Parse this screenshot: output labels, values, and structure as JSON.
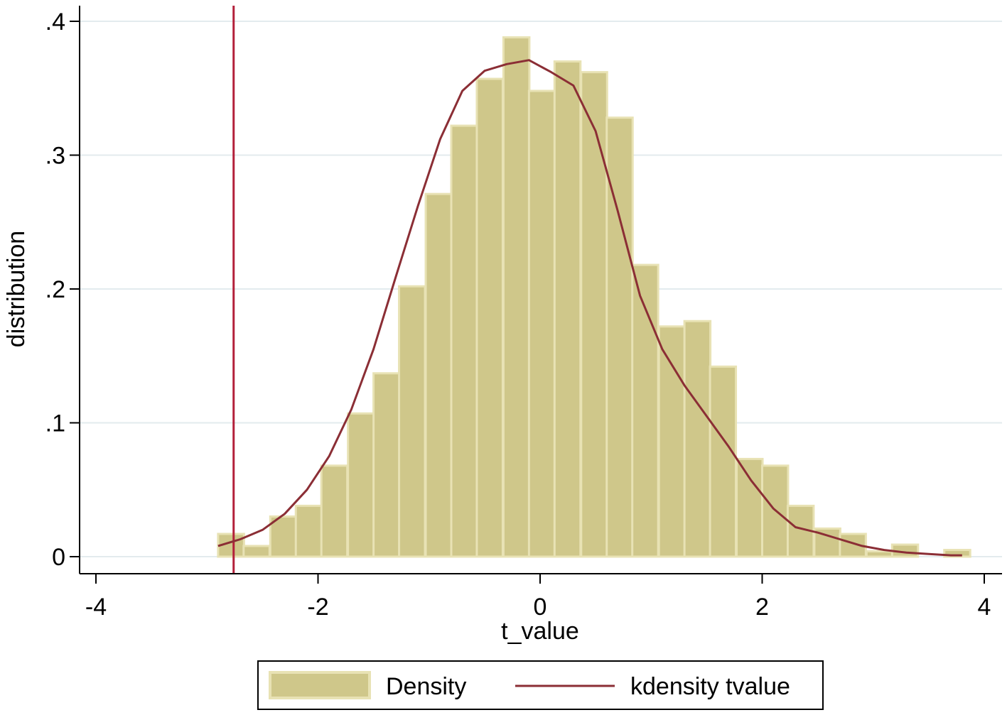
{
  "chart_data": {
    "type": "bar",
    "subtype": "histogram-with-density",
    "xlabel": "t_value",
    "ylabel": "distribution",
    "xlim": [
      -4,
      4
    ],
    "ylim": [
      0,
      0.4
    ],
    "xticks": [
      -4,
      -2,
      0,
      2,
      4
    ],
    "xtick_labels": [
      "-4",
      "-2",
      "0",
      "2",
      "4"
    ],
    "yticks": [
      0,
      0.1,
      0.2,
      0.3,
      0.4
    ],
    "ytick_labels": [
      "0",
      ".1",
      ".2",
      ".3",
      ".4"
    ],
    "grid": "horizontal",
    "legend_position": "bottom",
    "reference_line_x": -2.76,
    "bin_width": 0.2334,
    "bins": {
      "x_start": [
        -2.9,
        -2.67,
        -2.43,
        -2.2,
        -1.97,
        -1.73,
        -1.5,
        -1.27,
        -1.03,
        -0.8,
        -0.57,
        -0.33,
        -0.1,
        0.13,
        0.37,
        0.6,
        0.83,
        1.07,
        1.3,
        1.53,
        1.77,
        2.0,
        2.23,
        2.47,
        2.7,
        2.94,
        3.17,
        3.4,
        3.64
      ],
      "density": [
        0.017,
        0.008,
        0.03,
        0.038,
        0.068,
        0.107,
        0.137,
        0.202,
        0.271,
        0.322,
        0.357,
        0.388,
        0.348,
        0.37,
        0.362,
        0.328,
        0.218,
        0.172,
        0.176,
        0.142,
        0.073,
        0.068,
        0.038,
        0.021,
        0.017,
        0.004,
        0.009,
        0.0,
        0.005
      ]
    },
    "series": [
      {
        "name": "Density",
        "kind": "bar",
        "color": "#CFC78A"
      },
      {
        "name": "kdensity tvalue",
        "kind": "line",
        "color": "#8B2E35",
        "x": [
          -2.9,
          -2.7,
          -2.5,
          -2.3,
          -2.1,
          -1.9,
          -1.7,
          -1.5,
          -1.3,
          -1.1,
          -0.9,
          -0.7,
          -0.5,
          -0.3,
          -0.1,
          0.1,
          0.3,
          0.5,
          0.7,
          0.9,
          1.1,
          1.3,
          1.5,
          1.7,
          1.9,
          2.1,
          2.3,
          2.5,
          2.7,
          2.9,
          3.1,
          3.3,
          3.5,
          3.7,
          3.8
        ],
        "y": [
          0.008,
          0.013,
          0.02,
          0.032,
          0.05,
          0.075,
          0.11,
          0.155,
          0.209,
          0.262,
          0.312,
          0.348,
          0.363,
          0.368,
          0.371,
          0.362,
          0.352,
          0.318,
          0.258,
          0.195,
          0.155,
          0.128,
          0.105,
          0.082,
          0.057,
          0.036,
          0.022,
          0.018,
          0.013,
          0.008,
          0.005,
          0.003,
          0.002,
          0.001,
          0.001
        ]
      }
    ],
    "legend": {
      "density_label": "Density",
      "kdensity_label": "kdensity tvalue"
    },
    "colors": {
      "bar_fill": "#CFC78A",
      "bar_edge": "#E8E2B4",
      "kdensity_line": "#8B2E35",
      "reference_line": "#B3203A",
      "grid": "#E3EBEE"
    }
  }
}
